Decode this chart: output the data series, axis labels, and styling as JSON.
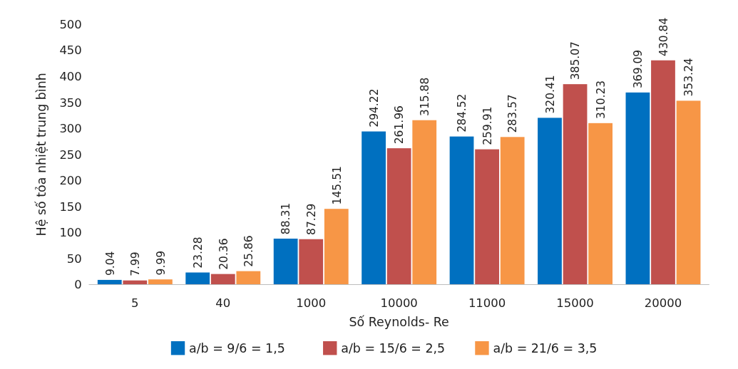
{
  "chart_data": {
    "type": "bar",
    "xlabel": "Số Reynolds- Re",
    "ylabel": "Hệ số tỏa nhiệt trung bình",
    "categories": [
      "5",
      "40",
      "1000",
      "10000",
      "11000",
      "15000",
      "20000"
    ],
    "series": [
      {
        "name": "a/b = 9/6 = 1,5",
        "color": "#0070c0",
        "values": [
          9.04,
          23.28,
          88.31,
          294.22,
          284.52,
          320.41,
          369.09
        ]
      },
      {
        "name": "a/b = 15/6 = 2,5",
        "color": "#c0504d",
        "values": [
          7.99,
          20.36,
          87.29,
          261.96,
          259.91,
          385.07,
          430.84
        ]
      },
      {
        "name": "a/b = 21/6 = 3,5",
        "color": "#f79646",
        "values": [
          9.99,
          25.86,
          145.51,
          315.88,
          283.57,
          310.23,
          353.24
        ]
      }
    ],
    "ylim": [
      0,
      500
    ],
    "yticks": [
      0,
      50,
      100,
      150,
      200,
      250,
      300,
      350,
      400,
      450,
      500
    ],
    "data_labels": true,
    "legend": "bottom",
    "grid": false
  }
}
